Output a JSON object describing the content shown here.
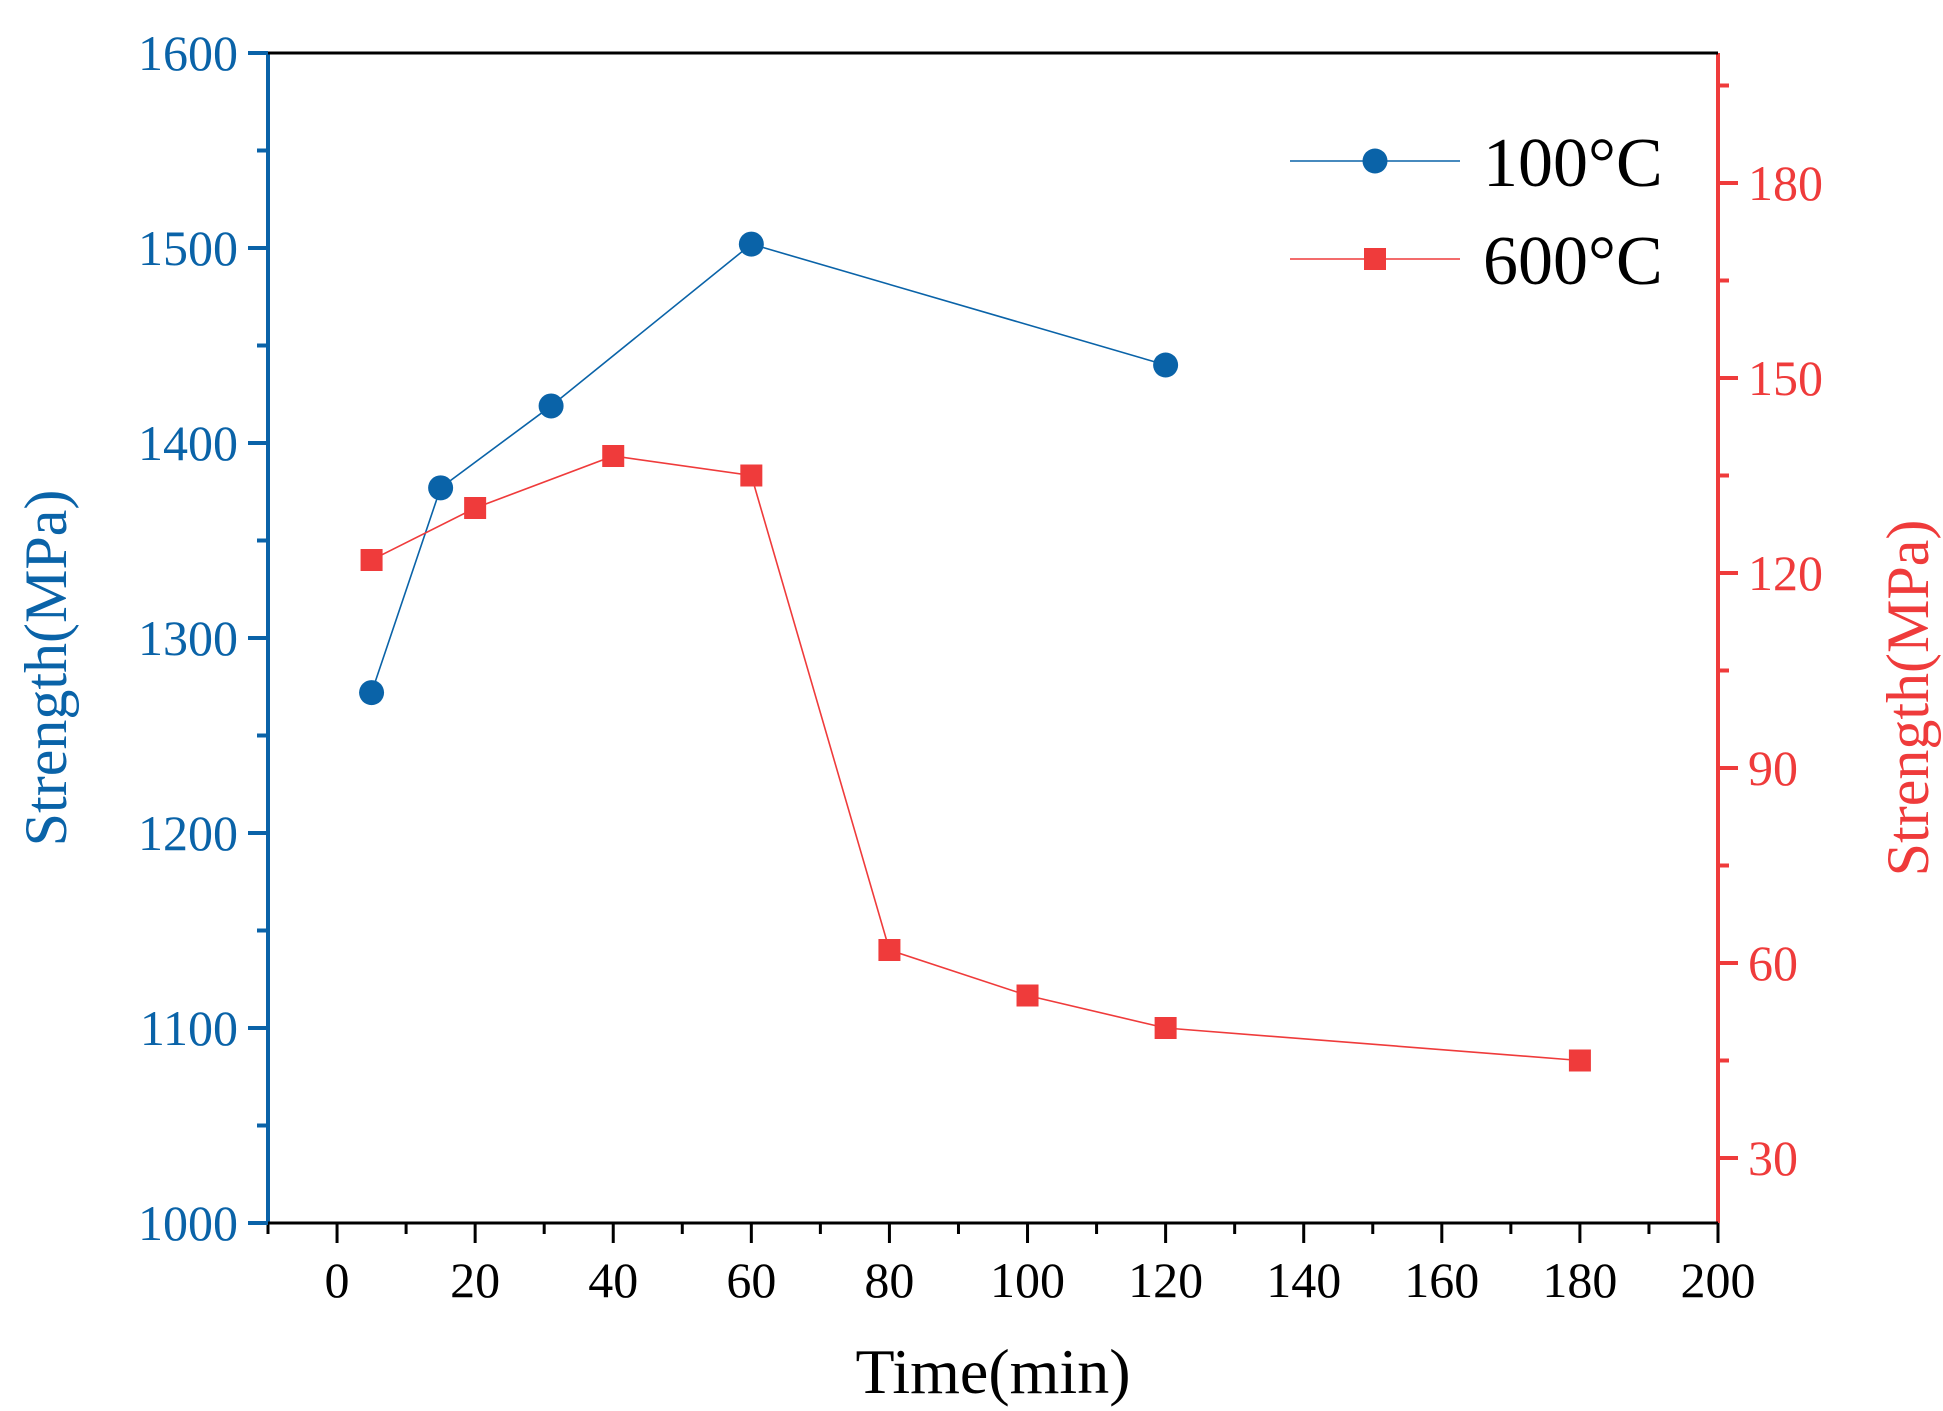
{
  "chart_data": {
    "type": "line",
    "xlabel": "Time(min)",
    "ylabel_left": "Strength(MPa)",
    "ylabel_right": "Strength(MPa)",
    "xlim": [
      -10,
      200
    ],
    "ylim_left": [
      1000,
      1600
    ],
    "ylim_right": [
      20,
      200
    ],
    "x_ticks": [
      0,
      20,
      40,
      60,
      80,
      100,
      120,
      140,
      160,
      180,
      200
    ],
    "y_left_ticks": [
      1000,
      1100,
      1200,
      1300,
      1400,
      1500,
      1600
    ],
    "y_right_ticks": [
      30,
      60,
      90,
      120,
      150,
      180
    ],
    "legend_position": "top-right",
    "series": [
      {
        "name": "100°C",
        "axis": "left",
        "marker": "circle",
        "color": "#0a63a8",
        "x": [
          5,
          15,
          31,
          60,
          120
        ],
        "values": [
          1272,
          1377,
          1419,
          1502,
          1440
        ]
      },
      {
        "name": "600°C",
        "axis": "right",
        "marker": "square",
        "color": "#ef3b3b",
        "x": [
          5,
          20,
          40,
          60,
          80,
          100,
          120,
          180
        ],
        "values": [
          122,
          130,
          138,
          135,
          62,
          55,
          50,
          45
        ]
      }
    ],
    "colors": {
      "left_axis": "#0a63a8",
      "right_axis": "#ef3b3b",
      "bottom_axis": "#000000"
    }
  }
}
